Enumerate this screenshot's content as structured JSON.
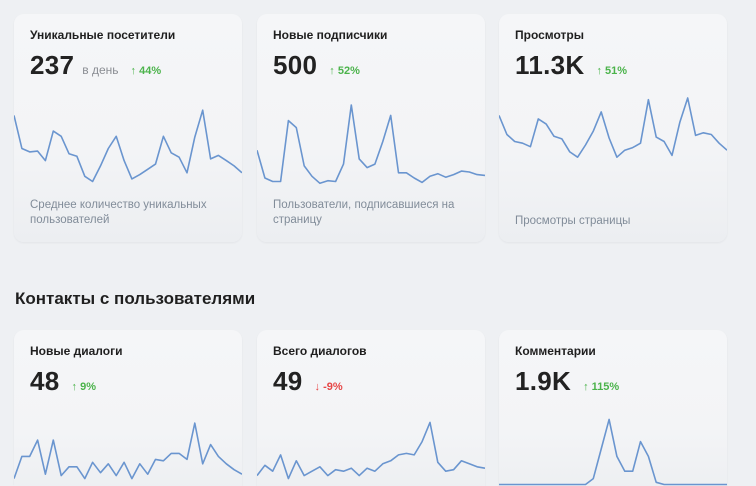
{
  "stats_row": {
    "cards": [
      {
        "title": "Уникальные посетители",
        "value": "237",
        "unit": "в день",
        "change": "↑ 44%",
        "change_direction": "up",
        "description": "Среднее количество уникальных пользователей",
        "sparkline": [
          0.8,
          0.42,
          0.38,
          0.39,
          0.28,
          0.62,
          0.56,
          0.36,
          0.33,
          0.1,
          0.04,
          0.22,
          0.42,
          0.56,
          0.28,
          0.07,
          0.12,
          0.18,
          0.24,
          0.56,
          0.37,
          0.32,
          0.14,
          0.55,
          0.86,
          0.3,
          0.34,
          0.28,
          0.22,
          0.14
        ]
      },
      {
        "title": "Новые подписчики",
        "value": "500",
        "unit": "",
        "change": "↑ 52%",
        "change_direction": "up",
        "description": "Пользователи, подписавшиеся на страницу",
        "sparkline": [
          0.4,
          0.08,
          0.04,
          0.04,
          0.74,
          0.66,
          0.22,
          0.1,
          0.02,
          0.05,
          0.04,
          0.24,
          0.92,
          0.3,
          0.2,
          0.24,
          0.5,
          0.8,
          0.14,
          0.14,
          0.08,
          0.03,
          0.1,
          0.13,
          0.09,
          0.12,
          0.16,
          0.15,
          0.12,
          0.11
        ]
      },
      {
        "title": "Просмотры",
        "value": "11.3K",
        "unit": "",
        "change": "↑ 51%",
        "change_direction": "up",
        "description": "Просмотры страницы",
        "sparkline": [
          0.8,
          0.58,
          0.5,
          0.48,
          0.44,
          0.76,
          0.7,
          0.56,
          0.53,
          0.38,
          0.32,
          0.46,
          0.62,
          0.84,
          0.54,
          0.32,
          0.4,
          0.43,
          0.48,
          0.98,
          0.55,
          0.5,
          0.34,
          0.72,
          1.0,
          0.57,
          0.6,
          0.58,
          0.48,
          0.4
        ]
      }
    ]
  },
  "contacts_section": {
    "title": "Контакты с пользователями",
    "cards": [
      {
        "title": "Новые диалоги",
        "value": "48",
        "unit": "",
        "change": "↑ 9%",
        "change_direction": "up",
        "sparkline": [
          0.1,
          0.4,
          0.4,
          0.62,
          0.16,
          0.62,
          0.14,
          0.26,
          0.26,
          0.1,
          0.32,
          0.18,
          0.3,
          0.14,
          0.32,
          0.1,
          0.3,
          0.16,
          0.36,
          0.34,
          0.44,
          0.44,
          0.36,
          0.85,
          0.3,
          0.56,
          0.4,
          0.3,
          0.22,
          0.16
        ]
      },
      {
        "title": "Всего диалогов",
        "value": "49",
        "unit": "",
        "change": "↓ -9%",
        "change_direction": "down",
        "sparkline": [
          0.14,
          0.28,
          0.2,
          0.42,
          0.1,
          0.34,
          0.14,
          0.2,
          0.26,
          0.14,
          0.22,
          0.2,
          0.24,
          0.14,
          0.24,
          0.2,
          0.3,
          0.34,
          0.42,
          0.44,
          0.42,
          0.6,
          0.86,
          0.32,
          0.2,
          0.22,
          0.34,
          0.3,
          0.26,
          0.24
        ]
      },
      {
        "title": "Комментарии",
        "value": "1.9K",
        "unit": "",
        "change": "↑ 115%",
        "change_direction": "up",
        "sparkline": [
          0.02,
          0.02,
          0.02,
          0.02,
          0.02,
          0.02,
          0.02,
          0.02,
          0.02,
          0.02,
          0.02,
          0.02,
          0.1,
          0.5,
          0.9,
          0.4,
          0.2,
          0.2,
          0.6,
          0.4,
          0.05,
          0.02,
          0.02,
          0.02,
          0.02,
          0.02,
          0.02,
          0.02,
          0.02,
          0.02
        ]
      }
    ]
  },
  "colors": {
    "line": "#6a95cf",
    "up": "#4bb34b",
    "down": "#e64646",
    "background": "#eef0f3",
    "card": "#f4f5f7"
  }
}
